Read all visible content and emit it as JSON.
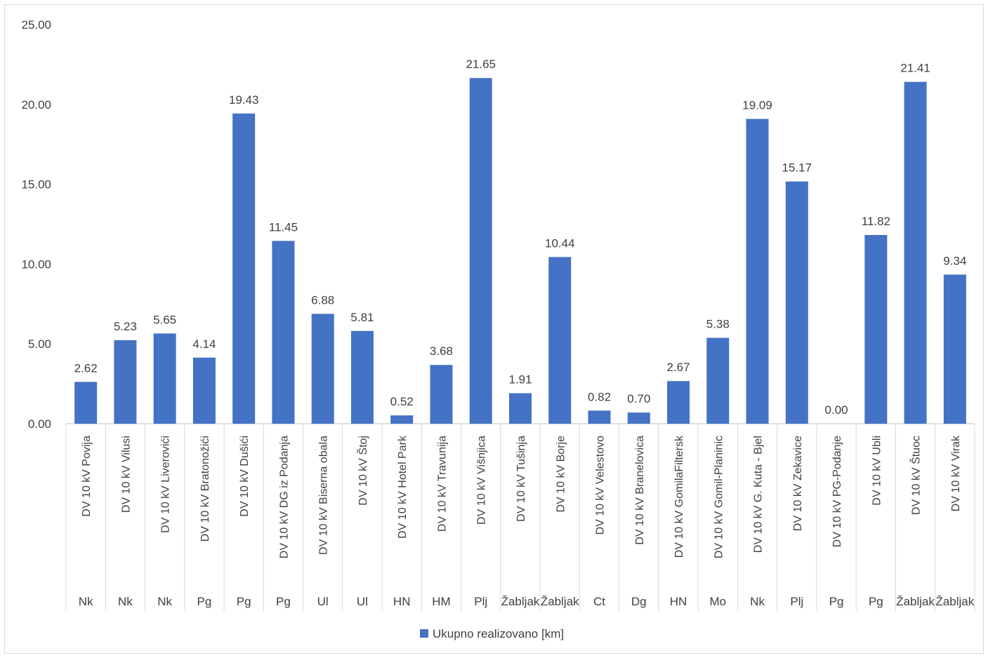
{
  "chart_data": {
    "type": "bar",
    "title": "",
    "xlabel": "",
    "ylabel": "",
    "ylim": [
      0,
      25
    ],
    "yticks": [
      "0.00",
      "5.00",
      "10.00",
      "15.00",
      "20.00",
      "25.00"
    ],
    "grid": false,
    "legend_position": "bottom",
    "bar_color": "#4472c4",
    "categories": [
      "DV 10 kV Povija",
      "DV 10 kV Vilusi",
      "DV 10 kV Liverovići",
      "DV 10 kV Bratonožići",
      "DV 10 kV Dušići",
      "DV 10 kV DG iz Podanja",
      "DV 10 kV Biserna obala",
      "DV 10 kV Štoj",
      "DV 10 kV Hotel Park",
      "DV 10 kV Travunija",
      "DV 10 kV Višnjica",
      "DV 10 kV Tušinja",
      "DV 10 kV Borje",
      "DV 10 kV Velestovo",
      "DV 10 kV Branelovica",
      "DV 10 kV GomilaFiltersk",
      "DV 10 kV Gomil-Planinic",
      "DV 10 kV G. Kuta - Bjel",
      "DV 10 kV Zekavice",
      "DV 10 kV PG-Podanje",
      "DV 10 kV Ubli",
      "DV 10 kV Štuoc",
      "DV 10 kV Virak"
    ],
    "groups": [
      "Nk",
      "Nk",
      "Nk",
      "Pg",
      "Pg",
      "Pg",
      "Ul",
      "Ul",
      "HN",
      "HM",
      "Plj",
      "Žabljak",
      "Žabljak",
      "Ct",
      "Dg",
      "HN",
      "Mo",
      "Nk",
      "Plj",
      "Pg",
      "Pg",
      "Žabljak",
      "Žabljak"
    ],
    "series": [
      {
        "name": "Ukupno realizovano [km]",
        "values": [
          2.62,
          5.23,
          5.65,
          4.14,
          19.43,
          11.45,
          6.88,
          5.81,
          0.52,
          3.68,
          21.65,
          1.91,
          10.44,
          0.82,
          0.7,
          2.67,
          5.38,
          19.09,
          15.17,
          0.0,
          11.82,
          21.41,
          9.34
        ],
        "data_labels": [
          "2.62",
          "5.23",
          "5.65",
          "4.14",
          "19.43",
          "11.45",
          "6.88",
          "5.81",
          "0.52",
          "3.68",
          "21.65",
          "1.91",
          "10.44",
          "0.82",
          "0.70",
          "2.67",
          "5.38",
          "19.09",
          "15.17",
          "0.00",
          "11.82",
          "21.41",
          "9.34"
        ]
      }
    ]
  }
}
